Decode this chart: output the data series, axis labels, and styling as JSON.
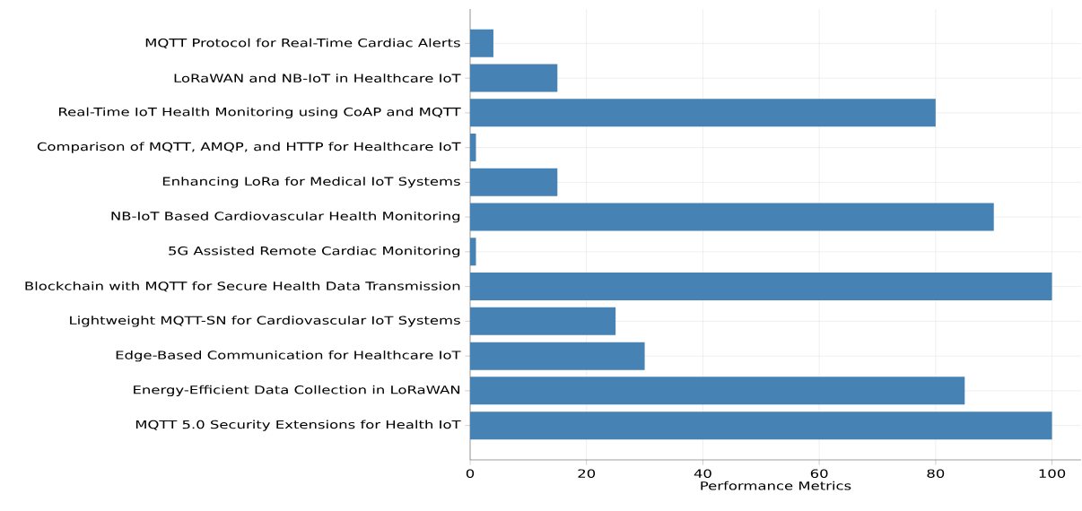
{
  "chart_data": {
    "type": "bar",
    "orientation": "horizontal",
    "xlabel": "Performance Metrics",
    "categories": [
      "MQTT Protocol for Real-Time Cardiac Alerts",
      "LoRaWAN and NB-IoT in Healthcare IoT",
      "Real-Time IoT Health Monitoring using CoAP and MQTT",
      "Comparison of MQTT, AMQP, and HTTP for Healthcare IoT",
      "Enhancing LoRa for Medical IoT Systems",
      "NB-IoT Based Cardiovascular Health Monitoring",
      "5G Assisted Remote Cardiac Monitoring",
      "Blockchain with MQTT for Secure Health Data Transmission",
      "Lightweight MQTT-SN for Cardiovascular IoT Systems",
      "Edge-Based Communication for Healthcare IoT",
      "Energy-Efficient Data Collection in LoRaWAN",
      "MQTT 5.0 Security Extensions for Health IoT"
    ],
    "values": [
      4,
      15,
      80,
      1,
      15,
      90,
      1,
      100,
      25,
      30,
      85,
      100
    ],
    "color": "#4682b4",
    "xlim": [
      0,
      105
    ],
    "xticks": [
      0,
      20,
      40,
      60,
      80,
      100
    ],
    "grid": true
  }
}
